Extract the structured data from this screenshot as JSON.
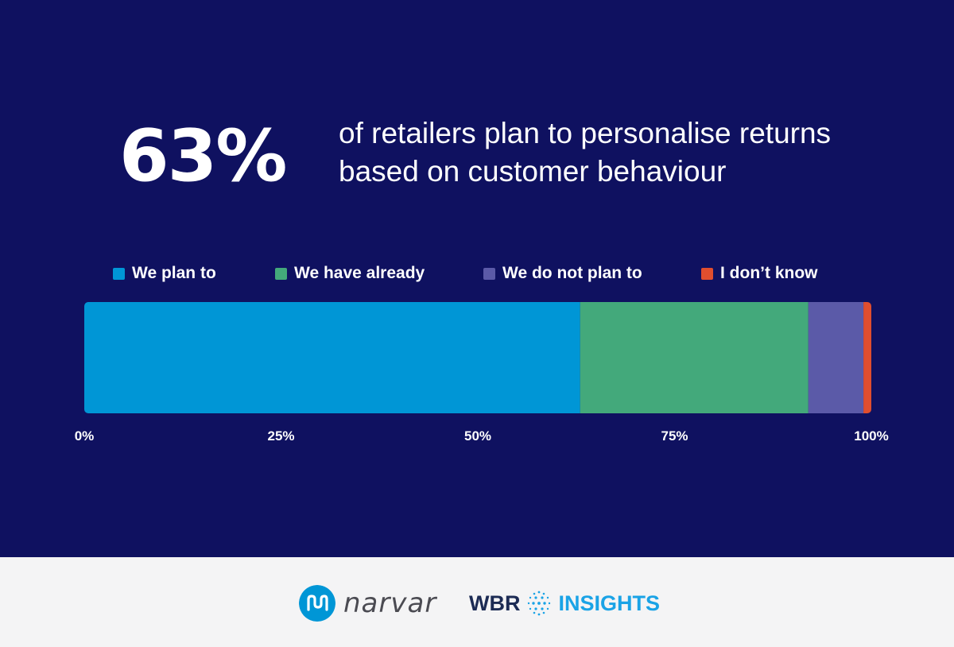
{
  "headline": {
    "stat": "63%",
    "text": "of retailers plan to personalise returns based on customer behaviour"
  },
  "chart_data": {
    "type": "bar",
    "orientation": "horizontal-stacked",
    "stacked": true,
    "xlim": [
      0,
      100
    ],
    "ticks": [
      "0%",
      "25%",
      "50%",
      "75%",
      "100%"
    ],
    "tick_values": [
      0,
      25,
      50,
      75,
      100
    ],
    "legend_position": "top",
    "series": [
      {
        "name": "We plan to",
        "value": 63,
        "color": "#0096d6"
      },
      {
        "name": "We have already",
        "value": 29,
        "color": "#43a97b"
      },
      {
        "name": "We do not plan to",
        "value": 7,
        "color": "#5b5aa8"
      },
      {
        "name": "I don’t know",
        "value": 1,
        "color": "#e04e2e"
      }
    ]
  },
  "footer": {
    "narvar_logo": "narvar",
    "wbr_logo_left": "WBR",
    "wbr_logo_right": "INSIGHTS",
    "narvar_icon": "narvar-mark-icon",
    "wbr_icon": "dotted-globe-icon"
  },
  "colors": {
    "background": "#0f1160",
    "footer_background": "#f4f4f5",
    "text": "#ffffff"
  }
}
